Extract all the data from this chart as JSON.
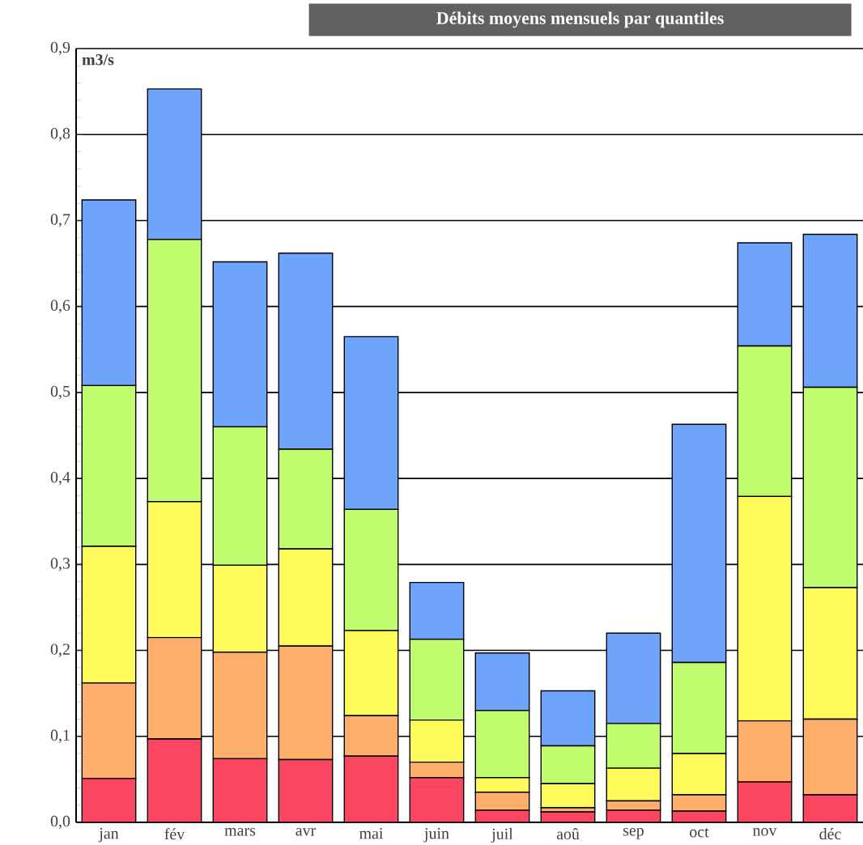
{
  "chart_data": {
    "type": "bar",
    "stacked": true,
    "title": "Débits moyens mensuels par quantiles",
    "ylabel": "m3/s",
    "categories": [
      "jan",
      "fév",
      "mars",
      "avr",
      "mai",
      "juin",
      "juil",
      "aoû",
      "sep",
      "oct",
      "nov",
      "déc"
    ],
    "series": [
      {
        "color": "#fa4661",
        "values": [
          0.051,
          0.097,
          0.074,
          0.073,
          0.077,
          0.052,
          0.014,
          0.012,
          0.014,
          0.013,
          0.047,
          0.032
        ]
      },
      {
        "color": "#fcae6a",
        "values": [
          0.111,
          0.118,
          0.124,
          0.132,
          0.047,
          0.018,
          0.021,
          0.005,
          0.011,
          0.019,
          0.071,
          0.088
        ]
      },
      {
        "color": "#fefa5a",
        "values": [
          0.159,
          0.158,
          0.101,
          0.113,
          0.099,
          0.049,
          0.017,
          0.028,
          0.038,
          0.048,
          0.261,
          0.153
        ]
      },
      {
        "color": "#c1fc6e",
        "values": [
          0.187,
          0.305,
          0.161,
          0.116,
          0.141,
          0.094,
          0.078,
          0.044,
          0.052,
          0.106,
          0.175,
          0.233
        ]
      },
      {
        "color": "#6ea4fc",
        "values": [
          0.216,
          0.175,
          0.192,
          0.228,
          0.201,
          0.066,
          0.067,
          0.064,
          0.105,
          0.277,
          0.12,
          0.178
        ]
      }
    ],
    "ylim": [
      0,
      0.9
    ],
    "yticks": [
      {
        "value": 0,
        "label": "0,0"
      },
      {
        "value": 0.1,
        "label": "0,1"
      },
      {
        "value": 0.2,
        "label": "0,2"
      },
      {
        "value": 0.3,
        "label": "0,3"
      },
      {
        "value": 0.4,
        "label": "0,4"
      },
      {
        "value": 0.5,
        "label": "0,5"
      },
      {
        "value": 0.6,
        "label": "0,6"
      },
      {
        "value": 0.7,
        "label": "0,7"
      },
      {
        "value": 0.8,
        "label": "0,8"
      },
      {
        "value": 0.9,
        "label": "0,9"
      }
    ],
    "grid": "y"
  }
}
